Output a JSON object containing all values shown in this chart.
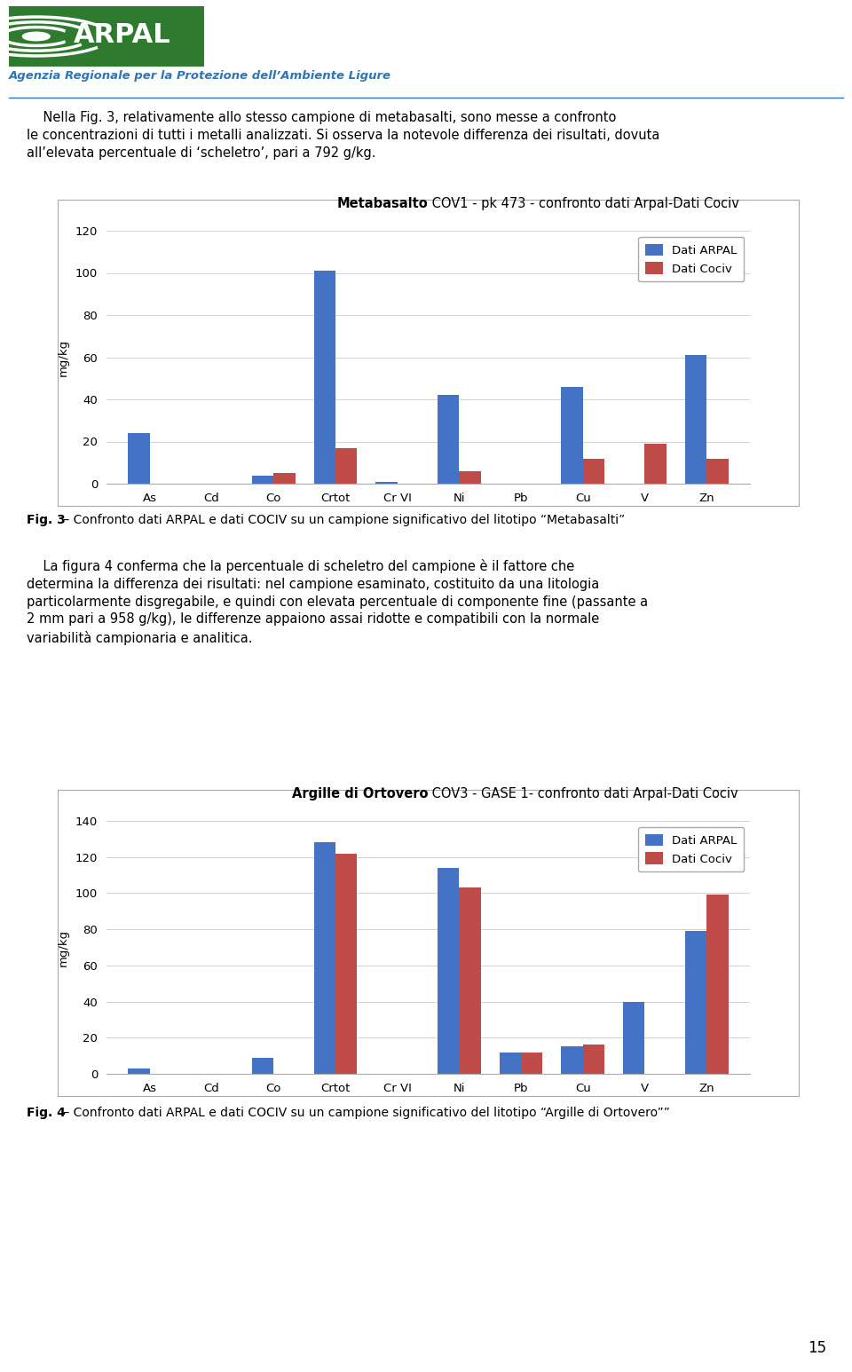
{
  "page_width": 9.6,
  "page_height": 15.46,
  "background_color": "#ffffff",
  "header": {
    "agency_name": "Agenzia Regionale per la Protezione dell’Ambiente Ligure"
  },
  "intro_text_lines": [
    "    Nella Fig. 3, relativamente allo stesso campione di metabasalti, sono messe a confronto",
    "le concentrazioni di tutti i metalli analizzati. Si osserva la notevole differenza dei risultati, dovuta",
    "all’elevata percentuale di ‘scheletro’, pari a 792 g/kg."
  ],
  "chart1": {
    "title_bold": "Metabasalto",
    "title_normal": " COV1 - pk 473 - confronto dati Arpal-Dati Cociv",
    "categories": [
      "As",
      "Cd",
      "Co",
      "Crtot",
      "Cr VI",
      "Ni",
      "Pb",
      "Cu",
      "V",
      "Zn"
    ],
    "arpal": [
      24,
      0,
      4,
      101,
      1,
      42,
      0,
      46,
      0,
      61
    ],
    "cociv": [
      0,
      0,
      5,
      17,
      0,
      6,
      0,
      12,
      19,
      12
    ],
    "ylabel": "mg/kg",
    "ylim": [
      0,
      120
    ],
    "yticks": [
      0,
      20,
      40,
      60,
      80,
      100,
      120
    ],
    "arpal_color": "#4472C4",
    "cociv_color": "#BE4B48",
    "legend_arpal": "Dati ARPAL",
    "legend_cociv": "Dati Cociv",
    "fig_label": "Fig. 3",
    "fig_caption": " – Confronto dati ARPAL e dati COCIV su un campione significativo del litotipo “Metabasalti”"
  },
  "body_text_lines": [
    "    La figura 4 conferma che la percentuale di scheletro del campione è il fattore che",
    "determina la differenza dei risultati: nel campione esaminato, costituito da una litologia",
    "particolarmente disgregabile, e quindi con elevata percentuale di componente fine (passante a",
    "2 mm pari a 958 g/kg), le differenze appaiono assai ridotte e compatibili con la normale",
    "variabilità campionaria e analitica."
  ],
  "chart2": {
    "title_bold": "Argille di Ortovero",
    "title_normal": " COV3 - GASE 1- confronto dati Arpal-Dati Cociv",
    "categories": [
      "As",
      "Cd",
      "Co",
      "Crtot",
      "Cr VI",
      "Ni",
      "Pb",
      "Cu",
      "V",
      "Zn"
    ],
    "arpal": [
      3,
      0,
      9,
      128,
      0,
      114,
      12,
      15,
      40,
      79
    ],
    "cociv": [
      0,
      0,
      0,
      122,
      0,
      103,
      12,
      16,
      0,
      99
    ],
    "ylabel": "mg/kg",
    "ylim": [
      0,
      140
    ],
    "yticks": [
      0,
      20,
      40,
      60,
      80,
      100,
      120,
      140
    ],
    "arpal_color": "#4472C4",
    "cociv_color": "#BE4B48",
    "legend_arpal": "Dati ARPAL",
    "legend_cociv": "Dati Cociv",
    "fig_label": "Fig. 4",
    "fig_caption": " – Confronto dati ARPAL e dati COCIV su un campione significativo del litotipo “Argille di Ortovero””"
  },
  "page_number": "15",
  "text_fontsize": 10.5,
  "caption_fontsize": 10,
  "chart_title_fontsize": 10.5,
  "axis_fontsize": 9.5,
  "legend_fontsize": 9.5
}
